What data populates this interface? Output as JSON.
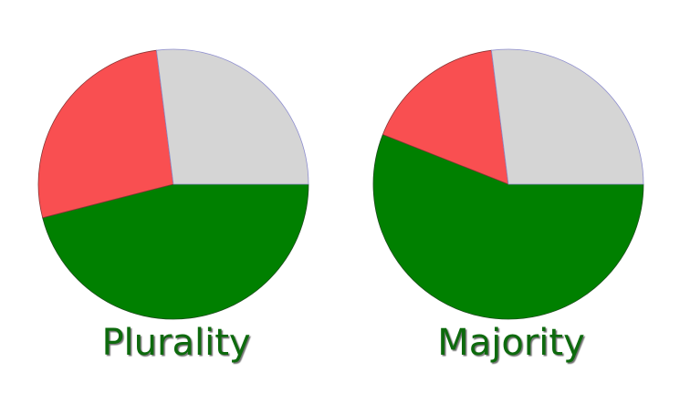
{
  "chart_data": [
    {
      "type": "pie",
      "title": "Plurality",
      "values": [
        46,
        27,
        27
      ],
      "colors": [
        "#008000",
        "#f94f51",
        "#d5d5d5"
      ],
      "strokes": [
        "#1d4d1d",
        "#8a3535",
        "#8f8fcf"
      ]
    },
    {
      "type": "pie",
      "title": "Majority",
      "values": [
        56,
        17,
        27
      ],
      "colors": [
        "#008000",
        "#f94f51",
        "#d5d5d5"
      ],
      "strokes": [
        "#1d4d1d",
        "#8a3535",
        "#8f8fcf"
      ]
    }
  ]
}
